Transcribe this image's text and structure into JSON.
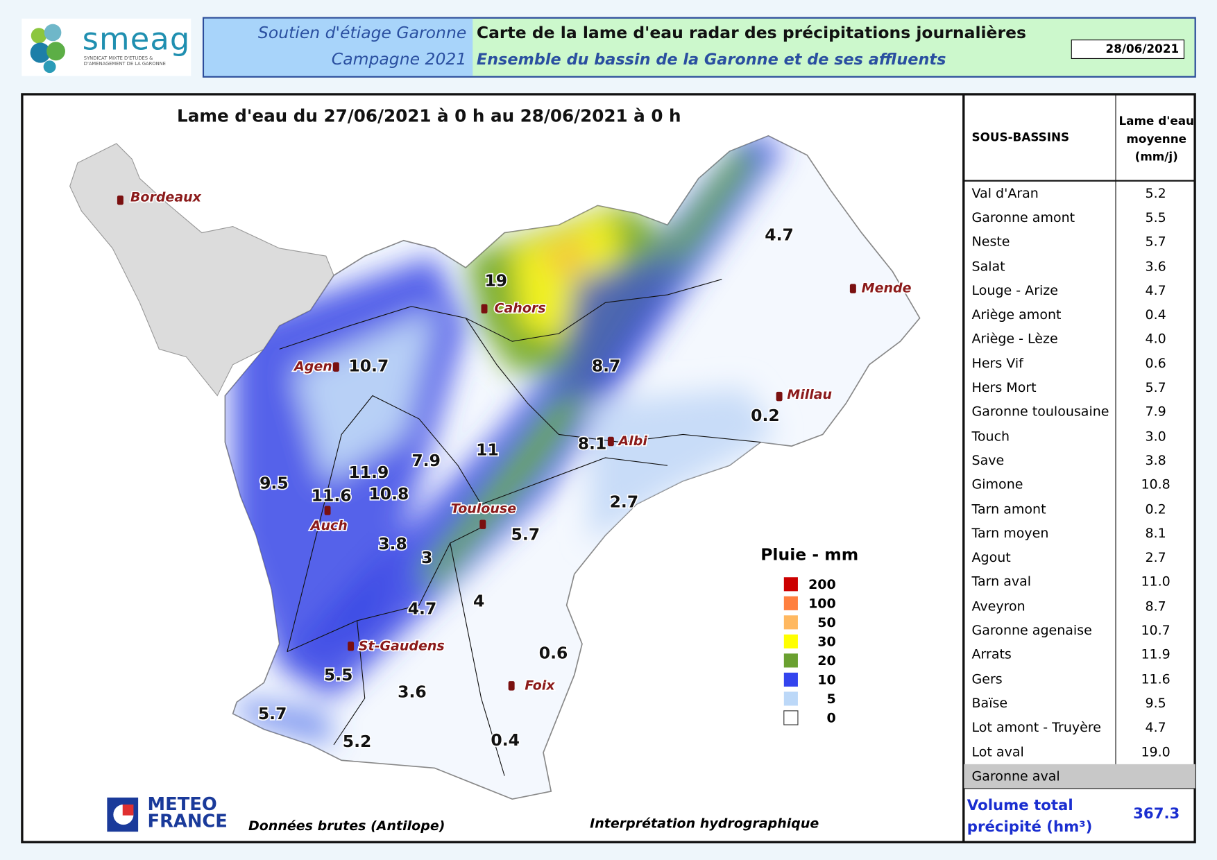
{
  "header": {
    "logo_text": "smeag",
    "logo_subtitle": "SYNDICAT MIXTE D'ETUDES & D'AMENAGEMENT DE LA GARONNE",
    "left_line1": "Soutien d'étiage Garonne",
    "left_line2": "Campagne 2021",
    "title": "Carte de la lame d'eau radar des précipitations journalières",
    "subtitle": "Ensemble du bassin de la Garonne et de ses affluents",
    "date": "28/06/2021"
  },
  "map": {
    "title": "Lame d'eau du 27/06/2021 à 0 h au 28/06/2021 à 0 h",
    "cities": [
      "Bordeaux",
      "Cahors",
      "Agen",
      "Mende",
      "Millau",
      "Albi",
      "Toulouse",
      "Auch",
      "St-Gaudens",
      "Foix"
    ],
    "basin_values": [
      "19",
      "4.7",
      "10.7",
      "8.7",
      "0.2",
      "8.1",
      "11",
      "7.9",
      "9.5",
      "11.9",
      "11.6",
      "10.8",
      "2.7",
      "5.7",
      "3.8",
      "3",
      "4.7",
      "4",
      "0.6",
      "5.5",
      "3.6",
      "5.7",
      "5.2",
      "0.4"
    ],
    "legend": {
      "title": "Pluie - mm",
      "levels": [
        {
          "label": "200",
          "color": "#cc0000"
        },
        {
          "label": "100",
          "color": "#ff7f3f"
        },
        {
          "label": "50",
          "color": "#ffb860"
        },
        {
          "label": "30",
          "color": "#ffff00"
        },
        {
          "label": "20",
          "color": "#6aa030"
        },
        {
          "label": "10",
          "color": "#3344ee"
        },
        {
          "label": "5",
          "color": "#bcd8f8"
        },
        {
          "label": "0",
          "color": "#ffffff"
        }
      ]
    }
  },
  "table": {
    "headers": [
      "SOUS-BASSINS",
      "Lame d'eau moyenne (mm/j)"
    ],
    "rows": [
      {
        "name": "Val d'Aran",
        "value": "5.2"
      },
      {
        "name": "Garonne amont",
        "value": "5.5"
      },
      {
        "name": "Neste",
        "value": "5.7"
      },
      {
        "name": "Salat",
        "value": "3.6"
      },
      {
        "name": "Louge - Arize",
        "value": "4.7"
      },
      {
        "name": "Ariège amont",
        "value": "0.4"
      },
      {
        "name": "Ariège - Lèze",
        "value": "4.0"
      },
      {
        "name": "Hers Vif",
        "value": "0.6"
      },
      {
        "name": "Hers Mort",
        "value": "5.7"
      },
      {
        "name": "Garonne toulousaine",
        "value": "7.9"
      },
      {
        "name": "Touch",
        "value": "3.0"
      },
      {
        "name": "Save",
        "value": "3.8"
      },
      {
        "name": "Gimone",
        "value": "10.8"
      },
      {
        "name": "Tarn amont",
        "value": "0.2"
      },
      {
        "name": "Tarn moyen",
        "value": "8.1"
      },
      {
        "name": "Agout",
        "value": "2.7"
      },
      {
        "name": "Tarn aval",
        "value": "11.0"
      },
      {
        "name": "Aveyron",
        "value": "8.7"
      },
      {
        "name": "Garonne agenaise",
        "value": "10.7"
      },
      {
        "name": "Arrats",
        "value": "11.9"
      },
      {
        "name": "Gers",
        "value": "11.6"
      },
      {
        "name": "Baïse",
        "value": "9.5"
      },
      {
        "name": "Lot amont - Truyère",
        "value": "4.7"
      },
      {
        "name": "Lot aval",
        "value": "19.0"
      },
      {
        "name": "Garonne aval",
        "value": null
      }
    ],
    "total": {
      "label": "Volume total précipité (hm³)",
      "value": "367.3"
    }
  },
  "footer": {
    "logo": "METEO FRANCE",
    "source": "Données brutes (Antilope)",
    "note": "Interprétation hydrographique"
  }
}
